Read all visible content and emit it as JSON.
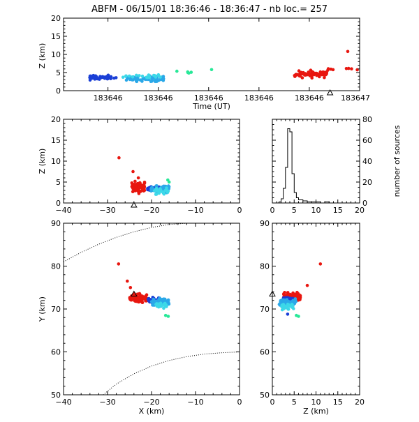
{
  "header": {
    "title": "ABFM - 06/15/01 18:36:46 - 18:36:47 - nb loc.=     257"
  },
  "colors": {
    "early": "#1a3fd6",
    "mid": "#2aa8e8",
    "cyan": "#3cd8e8",
    "green": "#28e898",
    "late": "#e8160f",
    "axis": "#000000"
  },
  "chart_data": [
    {
      "type": "scatter",
      "panel": "time-height",
      "xlabel": "Time (UT)",
      "ylabel": "Z (km)",
      "x_ticks": [
        "183646",
        "183646",
        "183646",
        "183646",
        "183646",
        "183647"
      ],
      "ylim": [
        0,
        20
      ],
      "y_ticks": [
        "0",
        "5",
        "10",
        "15",
        "20"
      ],
      "marker": {
        "symbol": "triangle",
        "x_fraction": 0.9,
        "y": 0
      },
      "clusters": [
        {
          "name": "",
          "color": "early",
          "t_range": [
            0.08,
            0.18
          ],
          "z_center": 3.6,
          "z_spread": 0.9,
          "count": 45
        },
        {
          "name": "",
          "color": "mid",
          "t_range": [
            0.21,
            0.34
          ],
          "z_center": 3.3,
          "z_spread": 1.1,
          "count": 70
        },
        {
          "name": "",
          "color": "cyan",
          "t_range": [
            0.2,
            0.35
          ],
          "z_center": 4.0,
          "z_spread": 0.7,
          "count": 20
        },
        {
          "name": "",
          "color": "green",
          "t_range": [
            0.36,
            0.44
          ],
          "z_center": 5.0,
          "z_spread": 0.6,
          "count": 4
        },
        {
          "name": "",
          "color": "late",
          "t_range": [
            0.78,
            0.89
          ],
          "z_center": 4.6,
          "z_spread": 1.3,
          "count": 75
        },
        {
          "name": "",
          "color": "late",
          "t_range": [
            0.89,
            1.0
          ],
          "z_center": 6.0,
          "z_spread": 0.5,
          "count": 8
        }
      ],
      "points": [
        {
          "t": 0.96,
          "z": 10.8,
          "color": "late"
        },
        {
          "t": 0.5,
          "z": 5.8,
          "color": "green"
        },
        {
          "t": 0.42,
          "z": 5.0,
          "color": "green"
        }
      ]
    },
    {
      "type": "scatter",
      "panel": "x-z",
      "xlabel": "",
      "ylabel": "Z (km)",
      "xlim": [
        -40,
        0
      ],
      "ylim": [
        0,
        20
      ],
      "x_ticks": [
        "−40",
        "−30",
        "−20",
        "−10",
        "0"
      ],
      "y_ticks": [
        "0",
        "5",
        "10",
        "15",
        "20"
      ],
      "marker": {
        "symbol": "triangle",
        "x": -24,
        "y": 0
      },
      "points": [
        {
          "x": -27.4,
          "z": 10.8,
          "color": "late"
        },
        {
          "x": -24.2,
          "z": 7.5,
          "color": "late"
        },
        {
          "x": -23.0,
          "z": 6.0,
          "color": "late"
        },
        {
          "x": -16.3,
          "z": 5.5,
          "color": "green"
        },
        {
          "x": -16.0,
          "z": 5.0,
          "color": "green"
        }
      ],
      "clusters": [
        {
          "name": "",
          "color": "late",
          "x_range": [
            -24.5,
            -21.5
          ],
          "z_center": 3.8,
          "z_spread": 1.8,
          "count": 70
        },
        {
          "name": "",
          "color": "early",
          "x_range": [
            -21.0,
            -18.0
          ],
          "z_center": 3.5,
          "z_spread": 0.9,
          "count": 30
        },
        {
          "name": "",
          "color": "mid",
          "x_range": [
            -20.5,
            -16.0
          ],
          "z_center": 3.3,
          "z_spread": 1.2,
          "count": 60
        },
        {
          "name": "",
          "color": "cyan",
          "x_range": [
            -19.5,
            -16.0
          ],
          "z_center": 2.8,
          "z_spread": 1.0,
          "count": 25
        }
      ]
    },
    {
      "type": "line",
      "panel": "histogram",
      "xlabel": "",
      "ylabel": "number of sources",
      "xlim": [
        0,
        20
      ],
      "ylim": [
        0,
        80
      ],
      "x_ticks": [
        "0",
        "5",
        "10",
        "15",
        "20"
      ],
      "y_ticks": [
        "0",
        "20",
        "40",
        "60",
        "80"
      ],
      "step_series": {
        "name": "",
        "x": [
          0,
          0.5,
          1.0,
          1.5,
          2.0,
          2.5,
          3.0,
          3.5,
          4.0,
          4.5,
          5.0,
          5.5,
          6.0,
          6.5,
          7.0,
          7.5,
          8.0,
          9.0,
          10.0,
          11.0,
          12.0,
          13.0,
          20.0
        ],
        "y": [
          0,
          0,
          0,
          1,
          4,
          14,
          34,
          71,
          68,
          28,
          10,
          5,
          3,
          3,
          2,
          2,
          1,
          1,
          1,
          0,
          1,
          0,
          0
        ]
      }
    },
    {
      "type": "scatter",
      "panel": "x-y",
      "xlabel": "X (km)",
      "ylabel": "Y (km)",
      "xlim": [
        -40,
        0
      ],
      "ylim": [
        50,
        90
      ],
      "x_ticks": [
        "−40",
        "−30",
        "−20",
        "−10",
        "0"
      ],
      "y_ticks": [
        "50",
        "60",
        "70",
        "80",
        "90"
      ],
      "marker": {
        "symbol": "triangle",
        "x": -24,
        "y": 73.5
      },
      "points": [
        {
          "x": -27.5,
          "y": 80.5,
          "color": "late"
        },
        {
          "x": -25.5,
          "y": 76.5,
          "color": "late"
        },
        {
          "x": -24.8,
          "y": 75.0,
          "color": "late"
        },
        {
          "x": -16.8,
          "y": 68.5,
          "color": "green"
        },
        {
          "x": -16.2,
          "y": 68.3,
          "color": "green"
        }
      ],
      "clusters": [
        {
          "name": "",
          "color": "late",
          "x_range": [
            -25.0,
            -21.0
          ],
          "y_center": 72.5,
          "y_spread": 1.4,
          "count": 75
        },
        {
          "name": "",
          "color": "early",
          "x_range": [
            -21.0,
            -17.5
          ],
          "y_center": 72.0,
          "y_spread": 1.0,
          "count": 35
        },
        {
          "name": "",
          "color": "mid",
          "x_range": [
            -20.0,
            -16.0
          ],
          "y_center": 71.5,
          "y_spread": 1.2,
          "count": 60
        },
        {
          "name": "",
          "color": "cyan",
          "x_range": [
            -19.0,
            -16.5
          ],
          "y_center": 70.8,
          "y_spread": 1.0,
          "count": 25
        }
      ],
      "curves": [
        {
          "name": "",
          "points": [
            [
              -40,
              81
            ],
            [
              -36,
              83.2
            ],
            [
              -32,
              85.1
            ],
            [
              -28,
              86.7
            ],
            [
              -24,
              88.0
            ],
            [
              -20,
              89.0
            ],
            [
              -16,
              89.7
            ],
            [
              -12,
              90.0
            ],
            [
              -8,
              90.2
            ]
          ]
        },
        {
          "name": "",
          "points": [
            [
              -31,
              50
            ],
            [
              -28,
              52.5
            ],
            [
              -24,
              54.9
            ],
            [
              -20,
              56.7
            ],
            [
              -16,
              58.0
            ],
            [
              -12,
              58.9
            ],
            [
              -8,
              59.5
            ],
            [
              -4,
              59.8
            ],
            [
              0,
              60
            ]
          ]
        }
      ]
    },
    {
      "type": "scatter",
      "panel": "z-y",
      "xlabel": "Z (km)",
      "ylabel": "",
      "xlim": [
        0,
        20
      ],
      "ylim": [
        50,
        90
      ],
      "x_ticks": [
        "0",
        "5",
        "10",
        "15",
        "20"
      ],
      "y_ticks": [
        "50",
        "60",
        "70",
        "80",
        "90"
      ],
      "marker": {
        "symbol": "triangle",
        "x": 0,
        "y": 73.5
      },
      "points": [
        {
          "x": 11.0,
          "y": 80.5,
          "color": "late"
        },
        {
          "x": 8.0,
          "y": 75.5,
          "color": "late"
        },
        {
          "x": 5.5,
          "y": 68.5,
          "color": "green"
        },
        {
          "x": 6.0,
          "y": 68.3,
          "color": "green"
        },
        {
          "x": 3.5,
          "y": 68.8,
          "color": "early"
        }
      ],
      "clusters": [
        {
          "name": "",
          "color": "late",
          "x_range": [
            2.5,
            6.5
          ],
          "y_center": 72.8,
          "y_spread": 1.4,
          "count": 75
        },
        {
          "name": "",
          "color": "early",
          "x_range": [
            2.5,
            5.0
          ],
          "y_center": 72.0,
          "y_spread": 1.0,
          "count": 35
        },
        {
          "name": "",
          "color": "mid",
          "x_range": [
            1.5,
            5.5
          ],
          "y_center": 71.5,
          "y_spread": 1.3,
          "count": 60
        },
        {
          "name": "",
          "color": "cyan",
          "x_range": [
            2.0,
            5.0
          ],
          "y_center": 70.5,
          "y_spread": 1.1,
          "count": 25
        }
      ]
    }
  ]
}
